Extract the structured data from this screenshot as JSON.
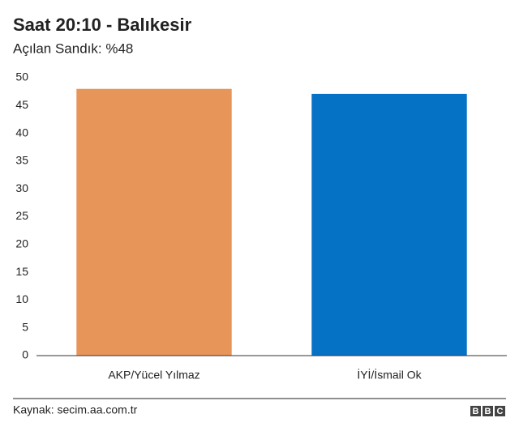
{
  "chart_data": {
    "type": "bar",
    "title": "Saat 20:10 - Balıkesir",
    "subtitle": "Açılan Sandık: %48",
    "categories": [
      "AKP/Yücel Yılmaz",
      "İYİ/İsmail Ok"
    ],
    "values": [
      48,
      47.1
    ],
    "colors": [
      "#e8955a",
      "#0672c6"
    ],
    "ylim": [
      0,
      50
    ],
    "yticks": [
      0,
      5,
      10,
      15,
      20,
      25,
      30,
      35,
      40,
      45,
      50
    ],
    "grid": false,
    "source": "Kaynak: secim.aa.com.tr",
    "logo": [
      "B",
      "B",
      "C"
    ]
  }
}
